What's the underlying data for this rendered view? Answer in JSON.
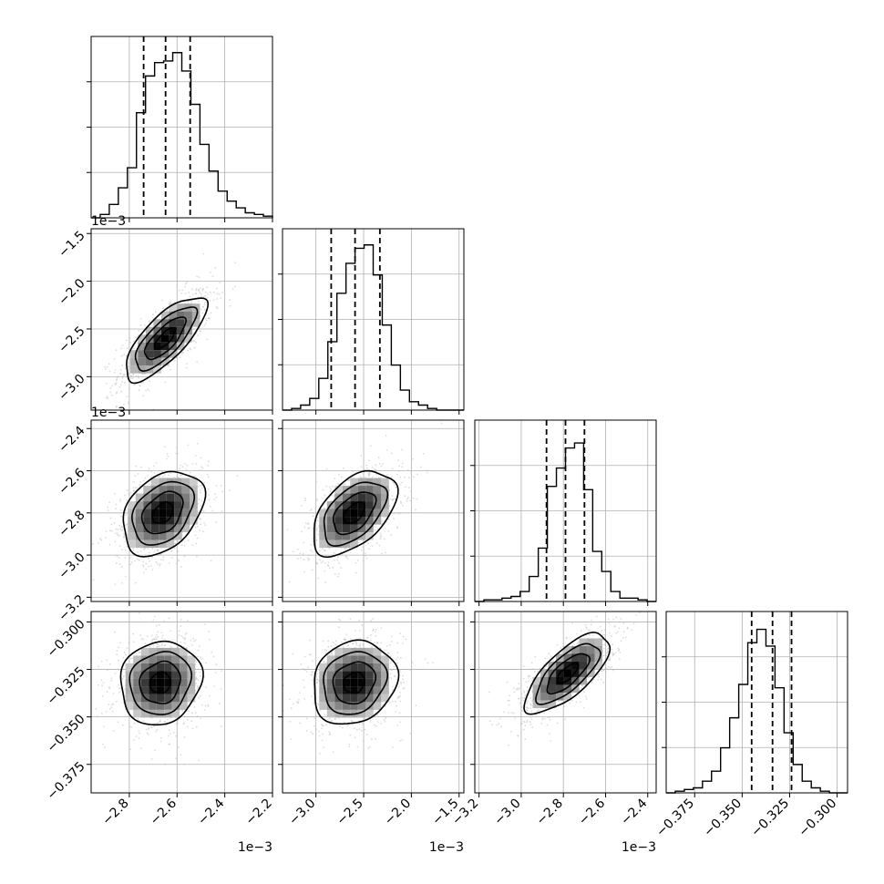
{
  "chart_data": {
    "type": "corner",
    "parameters": [
      {
        "index": 0,
        "range": [
          -2.96,
          -2.2
        ],
        "ticks": [
          -2.8,
          -2.6,
          -2.4,
          -2.2
        ],
        "tick_labels": [
          "−2.8",
          "−2.6",
          "−2.4",
          "−2.2"
        ],
        "offset_text": "1e−3",
        "quantiles": [
          -2.74,
          -2.648,
          -2.545
        ]
      },
      {
        "index": 1,
        "range": [
          -3.35,
          -1.45
        ],
        "ticks": [
          -3.0,
          -2.5,
          -2.0,
          -1.5
        ],
        "tick_labels": [
          "−3.0",
          "−2.5",
          "−2.0",
          "−1.5"
        ],
        "offset_text": "1e−3",
        "quantiles": [
          -2.84,
          -2.59,
          -2.33
        ]
      },
      {
        "index": 2,
        "range": [
          -3.22,
          -2.36
        ],
        "ticks": [
          -3.2,
          -3.0,
          -2.8,
          -2.6,
          -2.4
        ],
        "tick_labels": [
          "−3.2",
          "−3.0",
          "−2.8",
          "−2.6",
          "−2.4"
        ],
        "offset_text": "1e−3",
        "quantiles": [
          -2.88,
          -2.79,
          -2.7
        ]
      },
      {
        "index": 3,
        "range": [
          -0.39,
          -0.2945
        ],
        "ticks": [
          -0.375,
          -0.35,
          -0.325,
          -0.3
        ],
        "tick_labels": [
          "−0.375",
          "−0.350",
          "−0.325",
          "−0.300"
        ],
        "offset_text": "",
        "quantiles": [
          -0.345,
          -0.334,
          -0.324
        ]
      }
    ],
    "histograms": [
      {
        "param": 0,
        "edges_start": -2.96,
        "edges_step": 0.038,
        "counts": [
          0.0,
          0.02,
          0.08,
          0.18,
          0.3,
          0.63,
          0.85,
          0.93,
          0.94,
          0.99,
          0.88,
          0.68,
          0.44,
          0.28,
          0.16,
          0.1,
          0.06,
          0.03,
          0.02,
          0.01
        ]
      },
      {
        "param": 1,
        "edges_start": -3.35,
        "edges_step": 0.095,
        "counts": [
          0.0,
          0.01,
          0.03,
          0.07,
          0.19,
          0.41,
          0.7,
          0.88,
          0.97,
          0.99,
          0.81,
          0.51,
          0.27,
          0.12,
          0.05,
          0.03,
          0.01,
          0.0,
          0.0,
          0.0
        ]
      },
      {
        "param": 2,
        "edges_start": -3.22,
        "edges_step": 0.043,
        "counts": [
          0.0,
          0.01,
          0.01,
          0.02,
          0.03,
          0.06,
          0.15,
          0.32,
          0.69,
          0.8,
          0.92,
          0.95,
          0.67,
          0.3,
          0.18,
          0.06,
          0.02,
          0.02,
          0.01,
          0.0
        ]
      },
      {
        "param": 3,
        "edges_start": -0.39,
        "edges_step": 0.004775,
        "counts": [
          0.0,
          0.01,
          0.02,
          0.03,
          0.07,
          0.13,
          0.27,
          0.45,
          0.65,
          0.9,
          0.98,
          0.88,
          0.63,
          0.36,
          0.17,
          0.07,
          0.03,
          0.01,
          0.0,
          0.0
        ]
      }
    ],
    "scatter_2d": [
      {
        "x_param": 0,
        "y_param": 1,
        "x_mean": -2.65,
        "y_mean": -2.6,
        "x_std": 0.085,
        "y_std": 0.22,
        "correlation": 0.75
      },
      {
        "x_param": 0,
        "y_param": 2,
        "x_mean": -2.66,
        "y_mean": -2.8,
        "x_std": 0.085,
        "y_std": 0.1,
        "correlation": 0.35
      },
      {
        "x_param": 1,
        "y_param": 2,
        "x_mean": -2.6,
        "y_mean": -2.8,
        "x_std": 0.22,
        "y_std": 0.1,
        "correlation": 0.5
      },
      {
        "x_param": 0,
        "y_param": 3,
        "x_mean": -2.67,
        "y_mean": -0.332,
        "x_std": 0.085,
        "y_std": 0.011,
        "correlation": 0.1
      },
      {
        "x_param": 1,
        "y_param": 3,
        "x_mean": -2.6,
        "y_mean": -0.332,
        "x_std": 0.22,
        "y_std": 0.011,
        "correlation": 0.15
      },
      {
        "x_param": 2,
        "y_param": 3,
        "x_mean": -2.78,
        "y_mean": -0.327,
        "x_std": 0.1,
        "y_std": 0.0105,
        "correlation": 0.72
      }
    ],
    "grid": true,
    "colors": {
      "line": "#000000",
      "grid": "#b0b0b0",
      "scatter": "#bdbdbd",
      "spine": "#000000"
    }
  }
}
